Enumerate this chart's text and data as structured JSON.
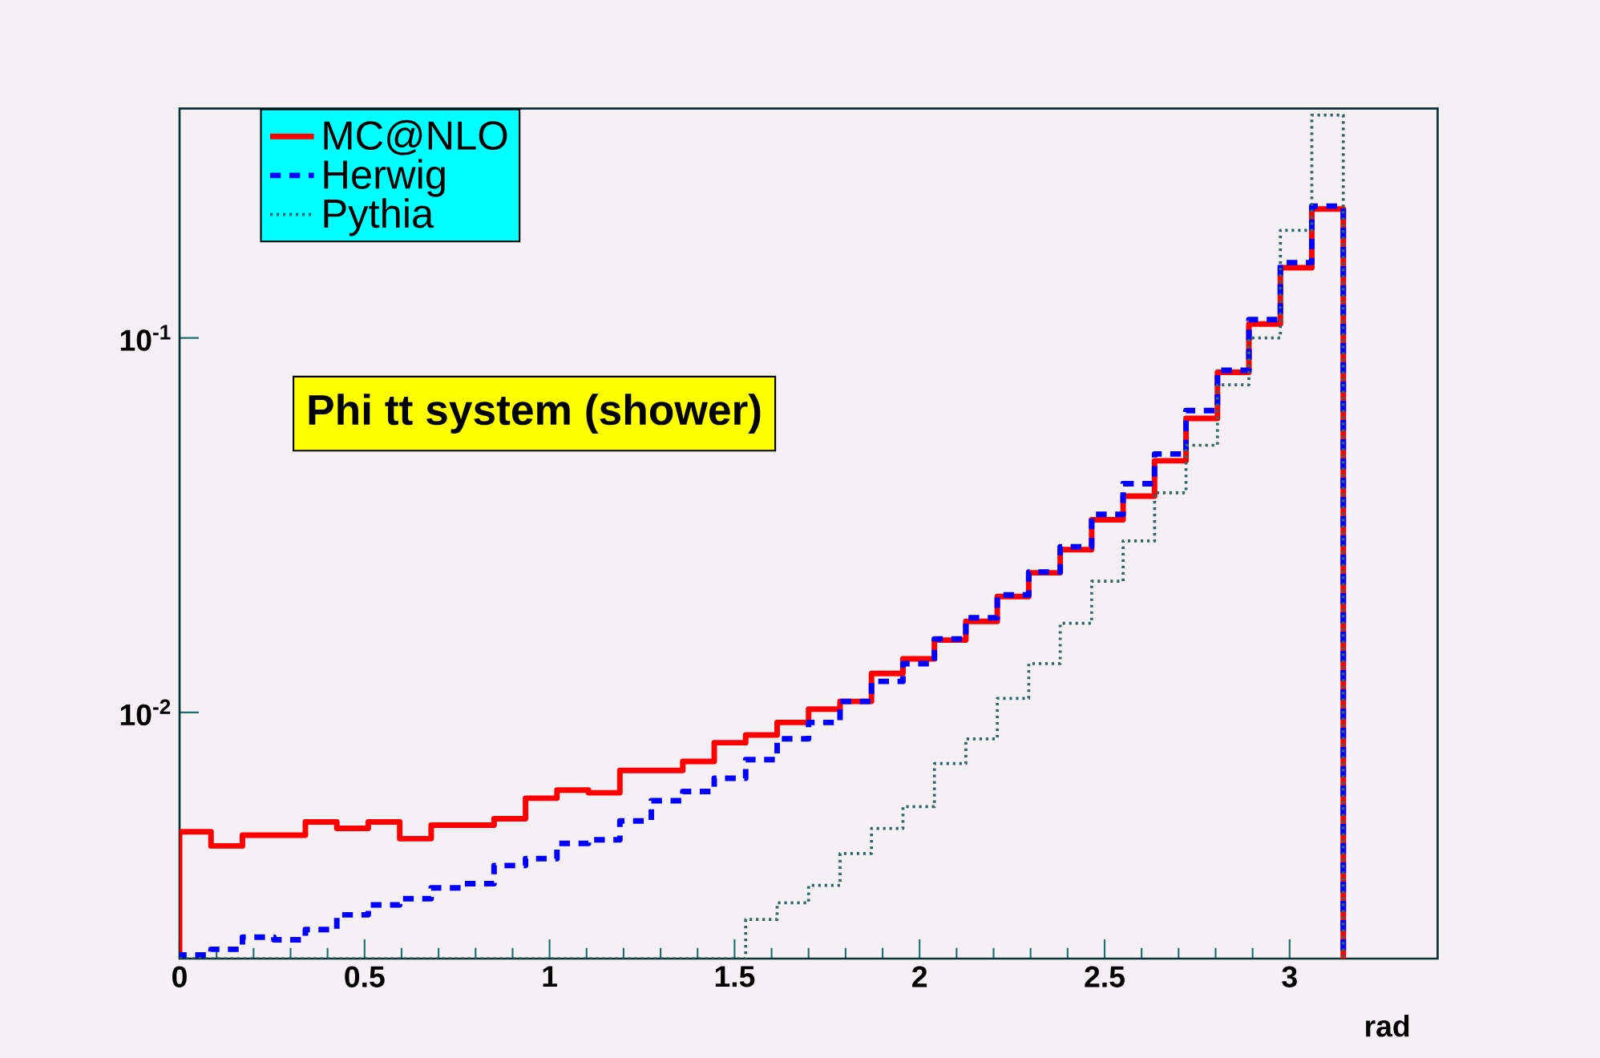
{
  "chart_data": {
    "type": "histogram",
    "title": "Phi tt system (shower)",
    "xlabel": "rad",
    "bins": [
      0,
      0.085,
      0.17,
      0.255,
      0.34,
      0.425,
      0.51,
      0.595,
      0.68,
      0.765,
      0.85,
      0.935,
      1.02,
      1.105,
      1.19,
      1.275,
      1.36,
      1.445,
      1.53,
      1.615,
      1.7,
      1.785,
      1.87,
      1.955,
      2.04,
      2.125,
      2.21,
      2.295,
      2.38,
      2.465,
      2.55,
      2.635,
      2.72,
      2.805,
      2.89,
      2.975,
      3.06,
      3.145
    ],
    "series": [
      {
        "name": "MC@NLO",
        "color": "#ff0000",
        "line_style": "solid",
        "values": [
          0.0048,
          0.0044,
          0.0047,
          0.0047,
          0.0051,
          0.0049,
          0.0051,
          0.0046,
          0.005,
          0.005,
          0.0052,
          0.0059,
          0.0062,
          0.0061,
          0.007,
          0.007,
          0.0074,
          0.0083,
          0.0087,
          0.0094,
          0.0102,
          0.0107,
          0.0127,
          0.0139,
          0.0156,
          0.0175,
          0.0204,
          0.0236,
          0.0272,
          0.0327,
          0.0378,
          0.047,
          0.061,
          0.081,
          0.109,
          0.154,
          0.221
        ]
      },
      {
        "name": "Herwig",
        "color": "#0000ff",
        "line_style": "dashed",
        "values": [
          0.00225,
          0.00233,
          0.00251,
          0.00247,
          0.00263,
          0.00288,
          0.00306,
          0.00318,
          0.0034,
          0.00349,
          0.0039,
          0.00407,
          0.00447,
          0.00457,
          0.00513,
          0.00581,
          0.00615,
          0.00667,
          0.00748,
          0.0085,
          0.0094,
          0.0107,
          0.0121,
          0.0135,
          0.0157,
          0.0179,
          0.0206,
          0.0237,
          0.0277,
          0.0338,
          0.0408,
          0.049,
          0.064,
          0.082,
          0.112,
          0.159,
          0.225
        ]
      },
      {
        "name": "Pythia",
        "color": "#336666",
        "line_style": "dotted",
        "values": [
          null,
          null,
          null,
          null,
          null,
          null,
          null,
          null,
          null,
          null,
          null,
          null,
          null,
          null,
          null,
          null,
          null,
          null,
          0.0028,
          0.0031,
          0.00345,
          0.0042,
          0.0049,
          0.0056,
          0.0073,
          0.0085,
          0.0109,
          0.0135,
          0.0173,
          0.0224,
          0.0287,
          0.0386,
          0.0517,
          0.075,
          0.1,
          0.194,
          0.394
        ]
      }
    ],
    "log": "y",
    "xlim": [
      0,
      3.4
    ],
    "ylim": [
      0.0022,
      0.41
    ],
    "xticks": [
      0,
      0.5,
      1,
      1.5,
      2,
      2.5,
      3
    ],
    "yticks": [
      {
        "value": 0.01,
        "label": "10$^{-2}$"
      },
      {
        "value": 0.1,
        "label": "10$^{-1}$"
      }
    ],
    "legend": "top left"
  }
}
